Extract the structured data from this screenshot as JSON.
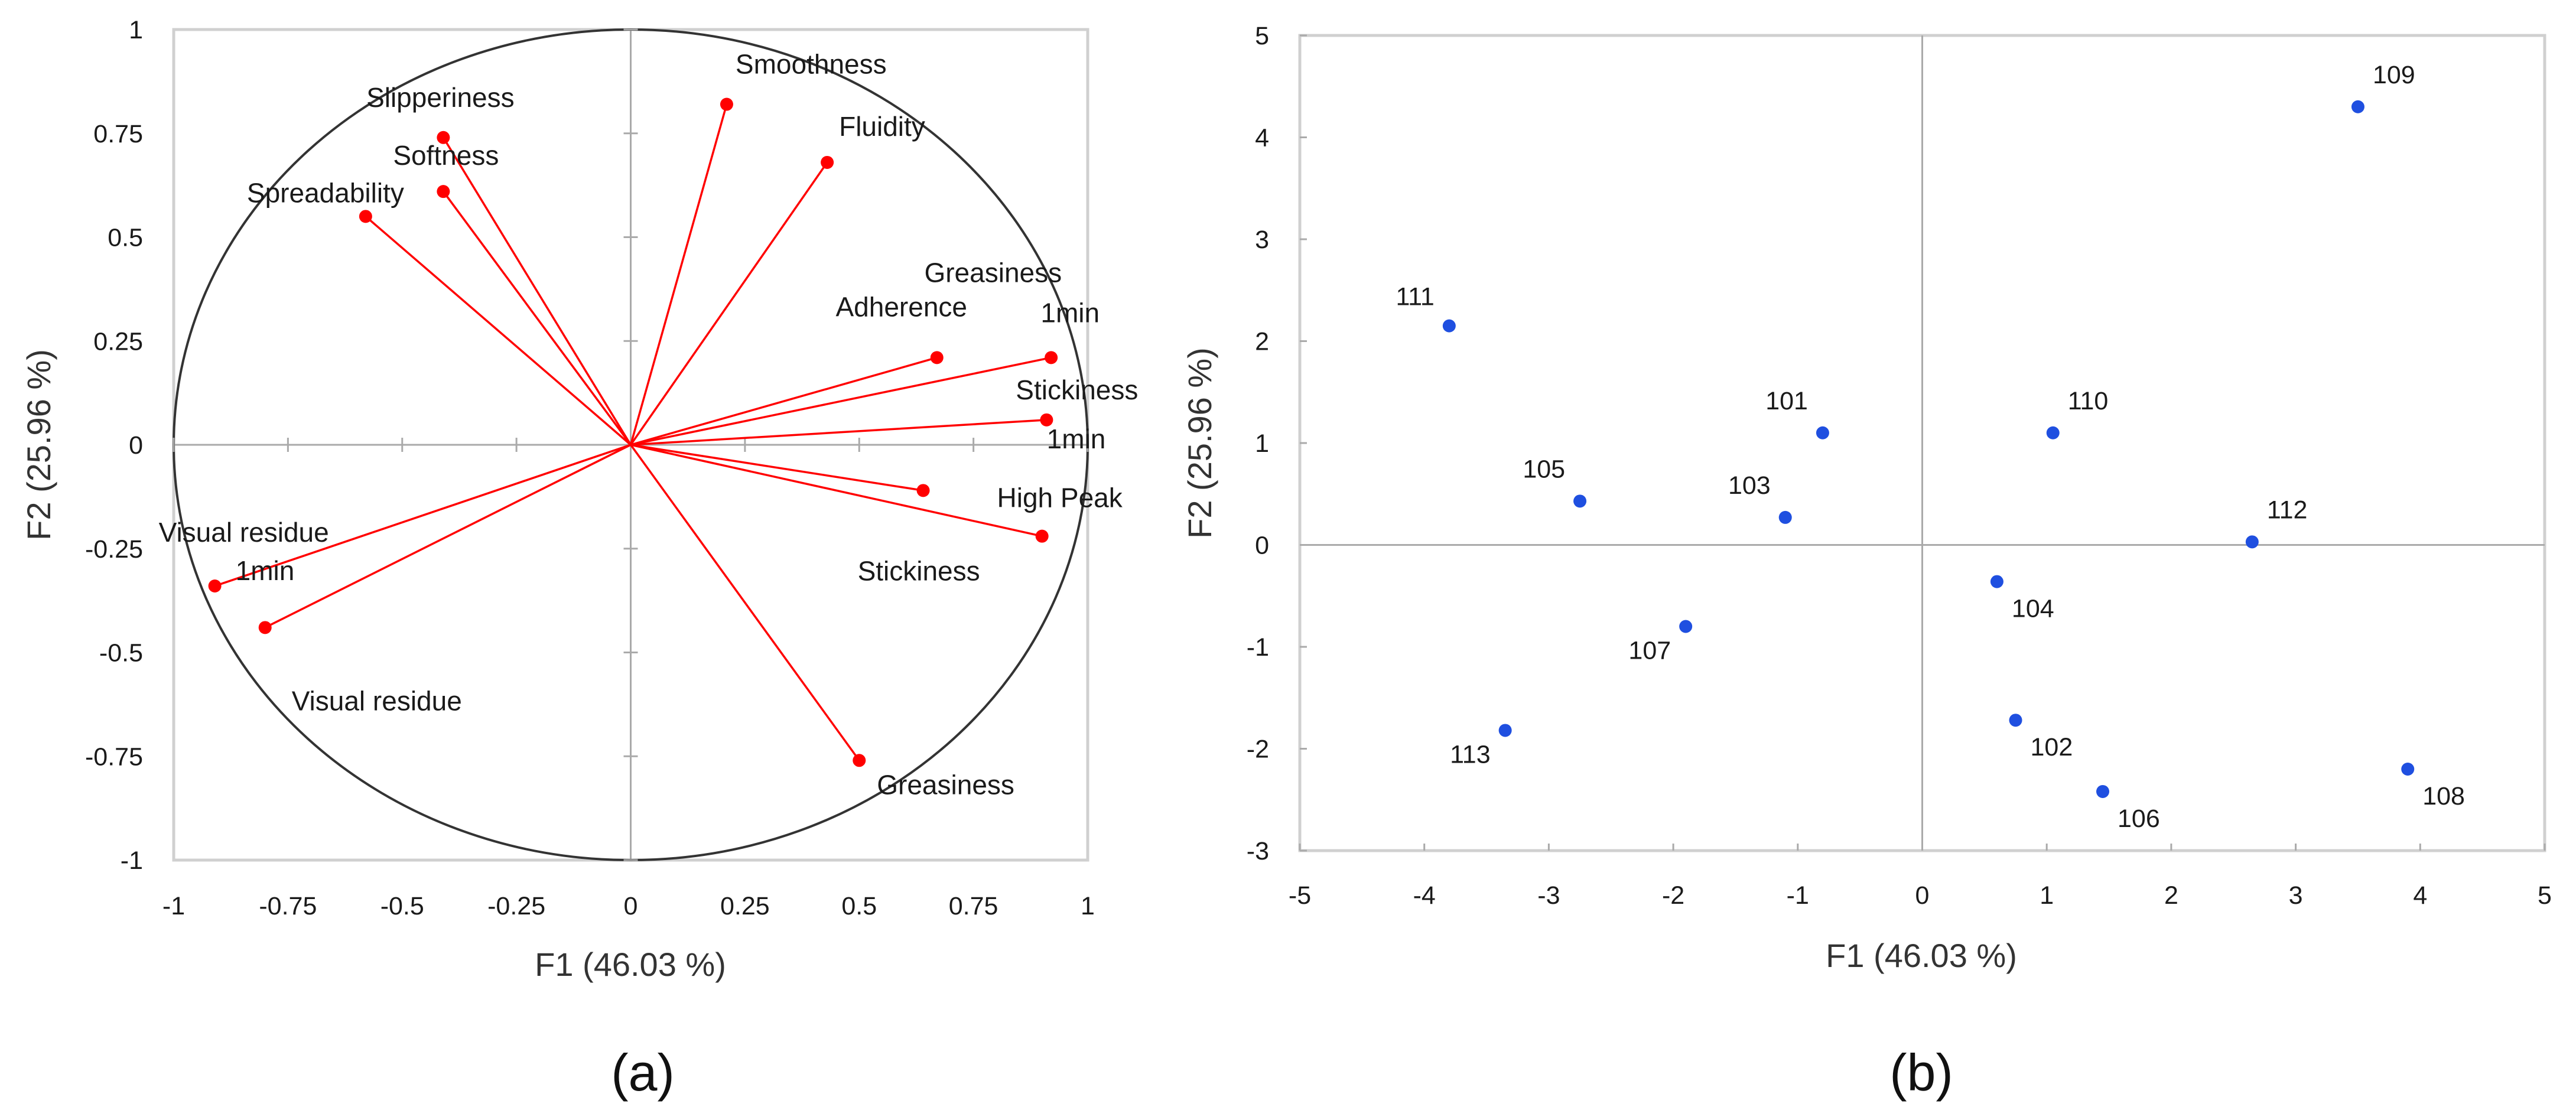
{
  "chart_data": [
    {
      "id": "a",
      "type": "scatter",
      "subtype": "correlation-circle",
      "panel_label": "(a)",
      "xlabel": "F1 (46.03 %)",
      "ylabel": "F2 (25.96 %)",
      "xlim": [
        -1,
        1
      ],
      "ylim": [
        -1,
        1
      ],
      "x_ticks": [
        "-1",
        "-0.75",
        "-0.5",
        "-0.25",
        "0",
        "0.25",
        "0.5",
        "0.75",
        "1"
      ],
      "y_ticks": [
        "1",
        "0.75",
        "0.5",
        "0.25",
        "0",
        "-0.25",
        "-0.5",
        "-0.75",
        "-1"
      ],
      "grid": false,
      "vector_color": "#ff0000",
      "circle_color": "#333333",
      "points": [
        {
          "label": "Smoothness",
          "x": 0.21,
          "y": 0.82
        },
        {
          "label": "Fluidity",
          "x": 0.43,
          "y": 0.68
        },
        {
          "label": "Slipperiness",
          "x": -0.41,
          "y": 0.74
        },
        {
          "label": "Softness",
          "x": -0.41,
          "y": 0.61
        },
        {
          "label": "Spreadability",
          "x": -0.58,
          "y": 0.55
        },
        {
          "label": "Adherence",
          "x": 0.67,
          "y": 0.21
        },
        {
          "label": "Greasiness 1min",
          "lines": [
            "Greasiness",
            "1min"
          ],
          "x": 0.92,
          "y": 0.21
        },
        {
          "label": "Stickiness 1min",
          "lines": [
            "Stickiness",
            "1min"
          ],
          "x": 0.91,
          "y": 0.06
        },
        {
          "label": "High Peak",
          "x": 0.64,
          "y": -0.11
        },
        {
          "label": "Stickiness",
          "x": 0.9,
          "y": -0.22
        },
        {
          "label": "Greasiness",
          "x": 0.5,
          "y": -0.76
        },
        {
          "label": "Visual residue 1min",
          "lines": [
            "Visual residue",
            "1min"
          ],
          "x": -0.91,
          "y": -0.34
        },
        {
          "label": "Visual residue",
          "x": -0.8,
          "y": -0.44
        }
      ]
    },
    {
      "id": "b",
      "type": "scatter",
      "panel_label": "(b)",
      "xlabel": "F1 (46.03 %)",
      "ylabel": "F2 (25.96 %)",
      "xlim": [
        -5,
        5
      ],
      "ylim": [
        -3,
        5
      ],
      "x_ticks": [
        "-5",
        "-4",
        "-3",
        "-2",
        "-1",
        "0",
        "1",
        "2",
        "3",
        "4",
        "5"
      ],
      "y_ticks": [
        "5",
        "4",
        "3",
        "2",
        "1",
        "0",
        "-1",
        "-2",
        "-3"
      ],
      "grid": false,
      "point_color": "#1f4fe0",
      "points": [
        {
          "label": "109",
          "x": 3.5,
          "y": 4.3
        },
        {
          "label": "111",
          "x": -3.8,
          "y": 2.15
        },
        {
          "label": "101",
          "x": -0.8,
          "y": 1.1
        },
        {
          "label": "110",
          "x": 1.05,
          "y": 1.1
        },
        {
          "label": "105",
          "x": -2.75,
          "y": 0.43
        },
        {
          "label": "103",
          "x": -1.1,
          "y": 0.27
        },
        {
          "label": "112",
          "x": 2.65,
          "y": 0.03
        },
        {
          "label": "104",
          "x": 0.6,
          "y": -0.36
        },
        {
          "label": "107",
          "x": -1.9,
          "y": -0.8
        },
        {
          "label": "102",
          "x": 0.75,
          "y": -1.72
        },
        {
          "label": "113",
          "x": -3.35,
          "y": -1.82
        },
        {
          "label": "106",
          "x": 1.45,
          "y": -2.42
        },
        {
          "label": "108",
          "x": 3.9,
          "y": -2.2
        }
      ]
    }
  ]
}
